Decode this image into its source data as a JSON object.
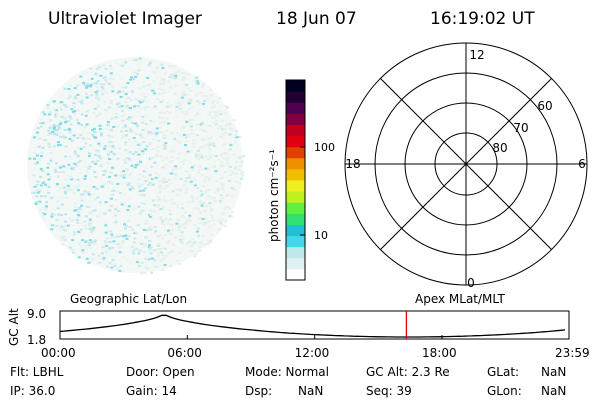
{
  "header": {
    "instrument": "Ultraviolet Imager",
    "date": "18 Jun 07",
    "time": "16:19:02 UT"
  },
  "colorbar": {
    "unit_label": "photon cm⁻²s⁻¹",
    "ticks": [
      {
        "label": "100",
        "value": 100
      },
      {
        "label": "10",
        "value": 10
      }
    ],
    "colors": [
      "#ffffff",
      "#dff0f0",
      "#c0e8e8",
      "#40d8e8",
      "#20c0d0",
      "#30e070",
      "#60f040",
      "#c0f020",
      "#f0f020",
      "#f0c000",
      "#f09000",
      "#e04000",
      "#e00010",
      "#c00020",
      "#800040",
      "#500050",
      "#200030",
      "#000020"
    ]
  },
  "polar": {
    "mlt_labels": {
      "top": "12",
      "left": "18",
      "right": "6",
      "bottom": "0"
    },
    "lat_labels": [
      "60",
      "70",
      "80"
    ]
  },
  "timeline": {
    "ylabel": "GC Alt",
    "ymax_label": "9.0",
    "ymin_label": "1.8",
    "left_label": "Geographic Lat/Lon",
    "right_label": "Apex MLat/MLT",
    "xticks": [
      "00:00",
      "06:00",
      "12:00",
      "18:00",
      "23:59"
    ],
    "current_marker_hours": 16.32,
    "trace_color": "#000000",
    "marker_color": "#e00000"
  },
  "footer": {
    "flt": "Flt: LBHL",
    "door": "Door: Open",
    "mode": "Mode: Normal",
    "gc_alt": "GC Alt: 2.3 Re",
    "glat_label": "GLat:",
    "glat_value": "NaN",
    "ip": "IP: 36.0",
    "gain": "Gain: 14",
    "dsp_label": "Dsp:",
    "dsp_value": "NaN",
    "seq": "Seq: 39",
    "glon_label": "GLon:",
    "glon_value": "NaN"
  }
}
